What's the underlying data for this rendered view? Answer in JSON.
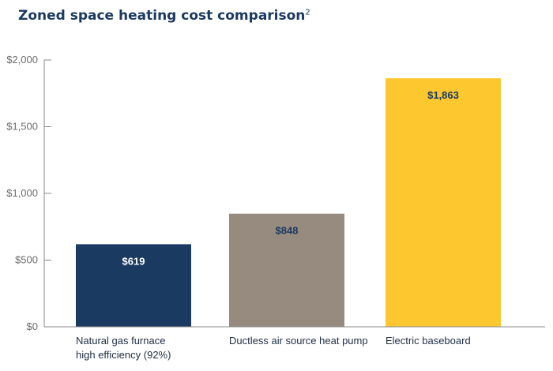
{
  "chart_data": {
    "type": "bar",
    "title": "Zoned space heating cost comparison",
    "title_superscript": "2",
    "categories": [
      [
        "Natural gas furnace",
        "high efficiency (92%)"
      ],
      [
        "Ductless air source heat pump"
      ],
      [
        "Electric baseboard"
      ]
    ],
    "values": [
      619,
      848,
      1863
    ],
    "data_labels": [
      "$619",
      "$848",
      "$1,863"
    ],
    "bar_colors": [
      "#1b3a61",
      "#978b7f",
      "#fdc82f"
    ],
    "data_label_colors": [
      "#ffffff",
      "#1b3a61",
      "#1b3a61"
    ],
    "ylim": [
      0,
      2000
    ],
    "yticks": [
      0,
      500,
      1000,
      1500,
      2000
    ],
    "ytick_labels": [
      "$0",
      "$500",
      "$1,000",
      "$1,500",
      "$2,000"
    ],
    "xlabel": "",
    "ylabel": "",
    "grid": false,
    "axis_color": "#8a8a8a"
  }
}
